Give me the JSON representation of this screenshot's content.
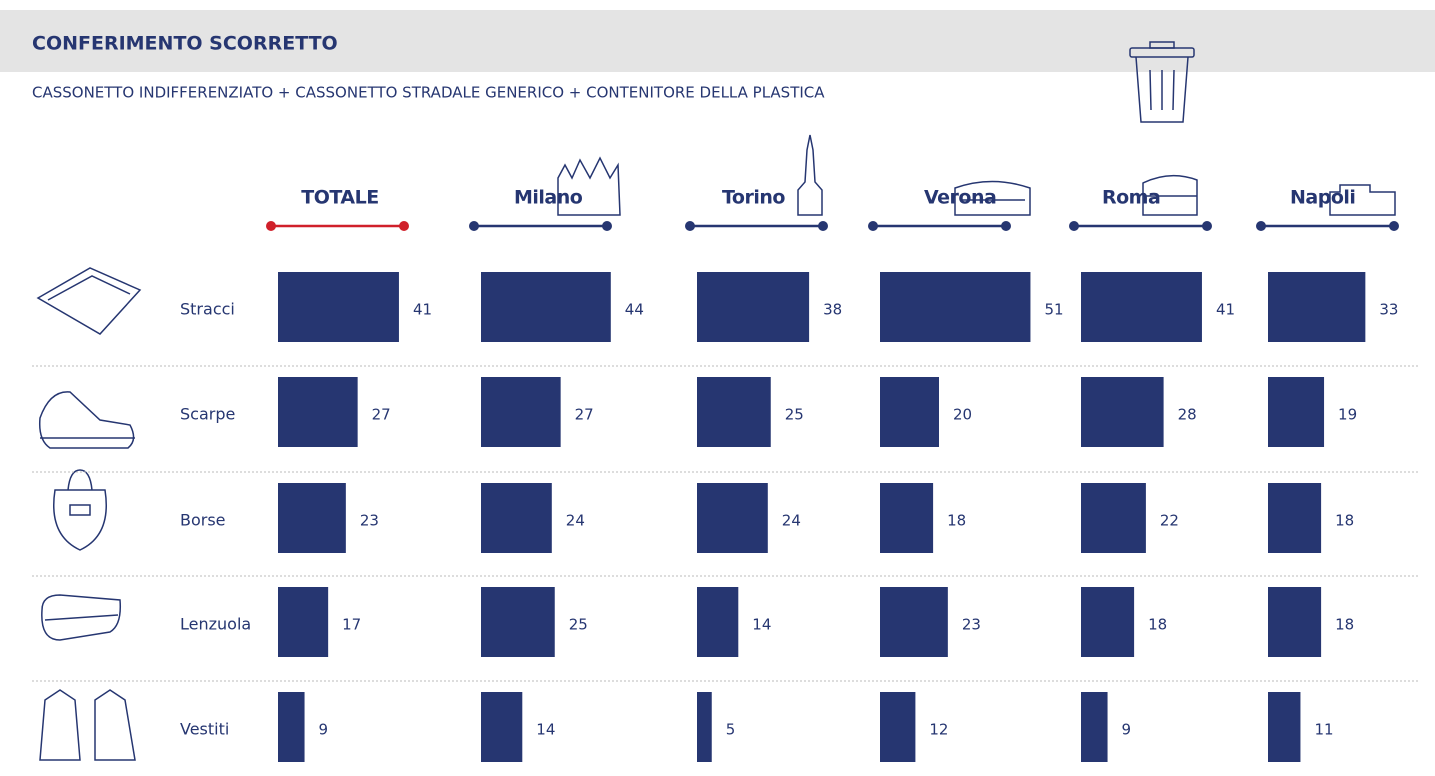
{
  "chart_data": {
    "type": "bar",
    "title": "CONFERIMENTO SCORRETTO",
    "subtitle": "CASSONETTO INDIFFERENZIATO + CASSONETTO STRADALE GENERICO + CONTENITORE DELLA PLASTICA",
    "categories": [
      "Stracci",
      "Scarpe",
      "Borse",
      "Lenzuola",
      "Vestiti"
    ],
    "color": "#263671",
    "series": [
      {
        "name": "TOTALE",
        "color": "#d0202a",
        "values": [
          41,
          27,
          23,
          17,
          9
        ]
      },
      {
        "name": "Milano",
        "color": "#263671",
        "values": [
          44,
          27,
          24,
          25,
          14
        ]
      },
      {
        "name": "Torino",
        "color": "#263671",
        "values": [
          38,
          25,
          24,
          14,
          5
        ]
      },
      {
        "name": "Verona",
        "color": "#263671",
        "values": [
          51,
          20,
          18,
          23,
          12
        ]
      },
      {
        "name": "Roma",
        "color": "#263671",
        "values": [
          41,
          28,
          22,
          18,
          9
        ]
      },
      {
        "name": "Napoli",
        "color": "#263671",
        "values": [
          33,
          19,
          18,
          18,
          11
        ]
      }
    ]
  }
}
